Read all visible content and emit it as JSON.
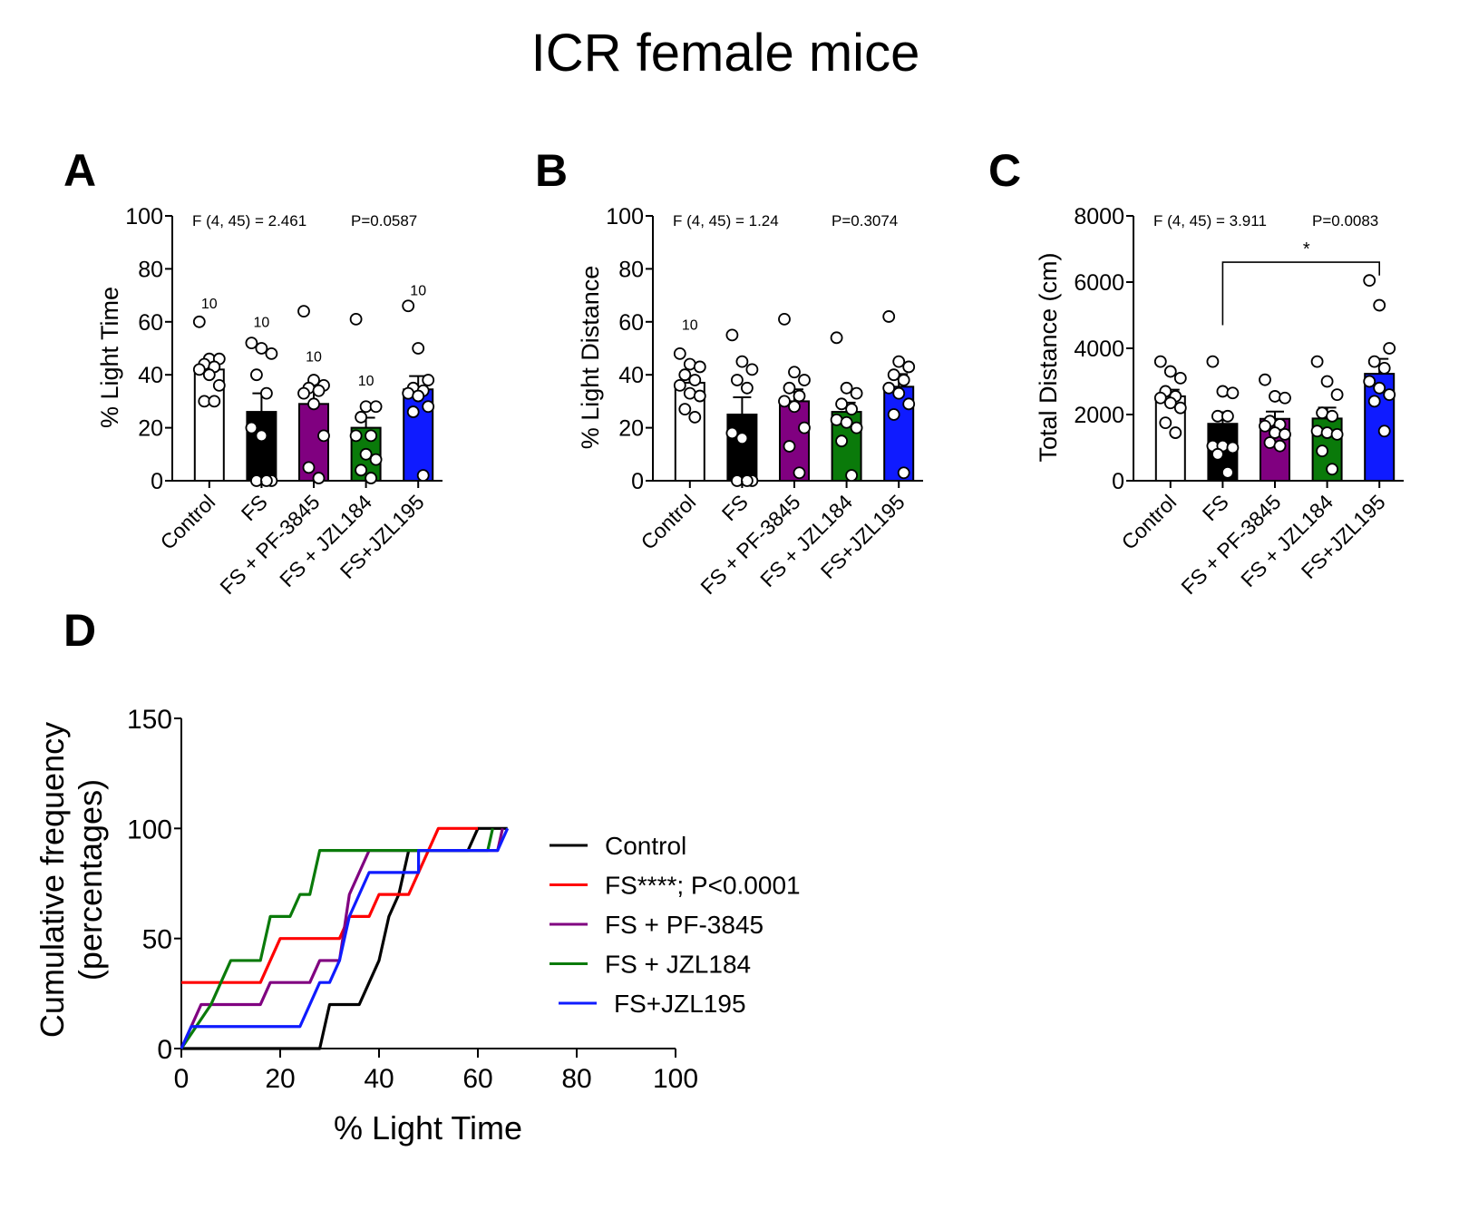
{
  "figure_title": "ICR female mice",
  "colors": {
    "Control": "#ffffff",
    "FS": "#000000",
    "FS + PF-3845": "#800080",
    "FS + JZL184": "#0a7a0a",
    "FS+JZL195": "#0f1bff",
    "FS_line": "#ff0000"
  },
  "chart_data": [
    {
      "panel": "A",
      "type": "bar",
      "title": "",
      "annotation": "F (4, 45) = 2.461     P=0.0587",
      "xlabel": "",
      "ylabel": "% Light Time",
      "ylim": [
        0,
        100
      ],
      "yticks": [
        0,
        20,
        40,
        60,
        80,
        100
      ],
      "categories": [
        "Control",
        "FS",
        "FS + PF-3845",
        "FS + JZL184",
        "FS+JZL195"
      ],
      "values": [
        42,
        26,
        29,
        20,
        34.5
      ],
      "sem": [
        2.8,
        7,
        5.5,
        3.8,
        5
      ],
      "n_labels": [
        "10",
        "10",
        "10",
        "10",
        "10"
      ],
      "n_label_y": [
        65,
        58,
        45,
        36,
        70
      ],
      "points": [
        [
          60,
          46,
          46,
          44,
          43,
          42,
          40,
          36,
          30,
          30
        ],
        [
          52,
          50,
          48,
          40,
          33,
          20,
          17,
          0,
          0,
          0
        ],
        [
          64,
          38,
          36,
          35,
          34,
          33,
          29,
          17,
          5,
          1
        ],
        [
          61,
          28,
          28,
          24,
          17,
          17,
          10,
          8,
          4,
          1
        ],
        [
          66,
          50,
          38,
          35,
          34,
          33,
          32,
          28,
          26,
          2
        ]
      ]
    },
    {
      "panel": "B",
      "type": "bar",
      "title": "",
      "annotation": "F (4, 45) = 1.24     P=0.3074",
      "xlabel": "",
      "ylabel": "% Light Distance",
      "ylim": [
        0,
        100
      ],
      "yticks": [
        0,
        20,
        40,
        60,
        80,
        100
      ],
      "categories": [
        "Control",
        "FS",
        "FS + PF-3845",
        "FS + JZL184",
        "FS+JZL195"
      ],
      "values": [
        37,
        25,
        30,
        26,
        35.5
      ],
      "sem": [
        2.5,
        6.5,
        4.5,
        3.5,
        4.8
      ],
      "n_labels": [
        "10"
      ],
      "n_label_y": [
        57
      ],
      "points": [
        [
          48,
          44,
          43,
          40,
          38,
          36,
          33,
          32,
          27,
          24
        ],
        [
          55,
          45,
          42,
          38,
          35,
          18,
          16,
          0,
          0,
          0
        ],
        [
          61,
          41,
          38,
          35,
          32,
          30,
          28,
          20,
          13,
          3
        ],
        [
          54,
          35,
          33,
          29,
          27,
          23,
          22,
          20,
          15,
          2
        ],
        [
          62,
          45,
          43,
          40,
          38,
          35,
          33,
          29,
          25,
          3
        ]
      ]
    },
    {
      "panel": "C",
      "type": "bar",
      "title": "",
      "annotation": "F (4, 45) = 3.911     P=0.0083",
      "xlabel": "",
      "ylabel": "Total Distance (cm)",
      "ylim": [
        0,
        8000
      ],
      "yticks": [
        0,
        2000,
        4000,
        6000,
        8000
      ],
      "categories": [
        "Control",
        "FS",
        "FS + PF-3845",
        "FS + JZL184",
        "FS+JZL195"
      ],
      "values": [
        2550,
        1720,
        1870,
        1880,
        3230
      ],
      "sem": [
        200,
        350,
        220,
        330,
        450
      ],
      "points": [
        [
          3600,
          3300,
          3100,
          2700,
          2550,
          2500,
          2350,
          2200,
          1750,
          1450
        ],
        [
          3600,
          2700,
          2650,
          1950,
          1950,
          1050,
          1050,
          1000,
          800,
          250
        ],
        [
          3050,
          2550,
          2500,
          1800,
          1700,
          1650,
          1450,
          1400,
          1150,
          1050
        ],
        [
          3600,
          3000,
          2600,
          2050,
          1950,
          1500,
          1450,
          1400,
          900,
          350
        ],
        [
          6050,
          5300,
          4000,
          3600,
          3400,
          3000,
          2800,
          2600,
          2400,
          1500
        ]
      ],
      "significance": {
        "from": "FS",
        "to": "FS+JZL195",
        "label": "*",
        "y": 6600,
        "from_y": 4700,
        "to_y": 6200
      }
    },
    {
      "panel": "D",
      "type": "line",
      "title": "",
      "xlabel": "% Light Time",
      "ylabel": "Cumulative frequency\n(percentages)",
      "xlim": [
        0,
        100
      ],
      "ylim": [
        0,
        150
      ],
      "xticks": [
        0,
        20,
        40,
        60,
        80,
        100
      ],
      "yticks": [
        0,
        50,
        100,
        150
      ],
      "legend_position": "right",
      "series": [
        {
          "name": "Control",
          "color": "#000000",
          "x": [
            0,
            28,
            30,
            36,
            38,
            40,
            42,
            44,
            46,
            58,
            60,
            66
          ],
          "y": [
            0,
            0,
            20,
            20,
            30,
            40,
            60,
            70,
            90,
            90,
            100,
            100
          ]
        },
        {
          "name": "FS****; P<0.0001",
          "color": "#ff0000",
          "x": [
            0,
            16,
            20,
            32,
            34,
            38,
            40,
            46,
            52,
            60
          ],
          "y": [
            30,
            30,
            50,
            50,
            60,
            60,
            70,
            70,
            100,
            100
          ]
        },
        {
          "name": "FS + PF-3845",
          "color": "#800080",
          "x": [
            0,
            4,
            16,
            18,
            26,
            28,
            32,
            34,
            38,
            60,
            62,
            64,
            65
          ],
          "y": [
            0,
            20,
            20,
            30,
            30,
            40,
            40,
            70,
            90,
            90,
            90,
            90,
            100
          ]
        },
        {
          "name": "FS + JZL184",
          "color": "#0a7a0a",
          "x": [
            0,
            6,
            10,
            16,
            18,
            22,
            24,
            26,
            28,
            30,
            46,
            62,
            63
          ],
          "y": [
            0,
            20,
            40,
            40,
            60,
            60,
            70,
            70,
            90,
            90,
            90,
            90,
            100
          ]
        },
        {
          "name": "FS+JZL195",
          "color": "#0f1bff",
          "x": [
            0,
            2,
            24,
            28,
            30,
            32,
            34,
            38,
            48,
            48,
            64,
            66
          ],
          "y": [
            0,
            10,
            10,
            30,
            30,
            40,
            60,
            80,
            80,
            90,
            90,
            100
          ]
        }
      ]
    }
  ]
}
